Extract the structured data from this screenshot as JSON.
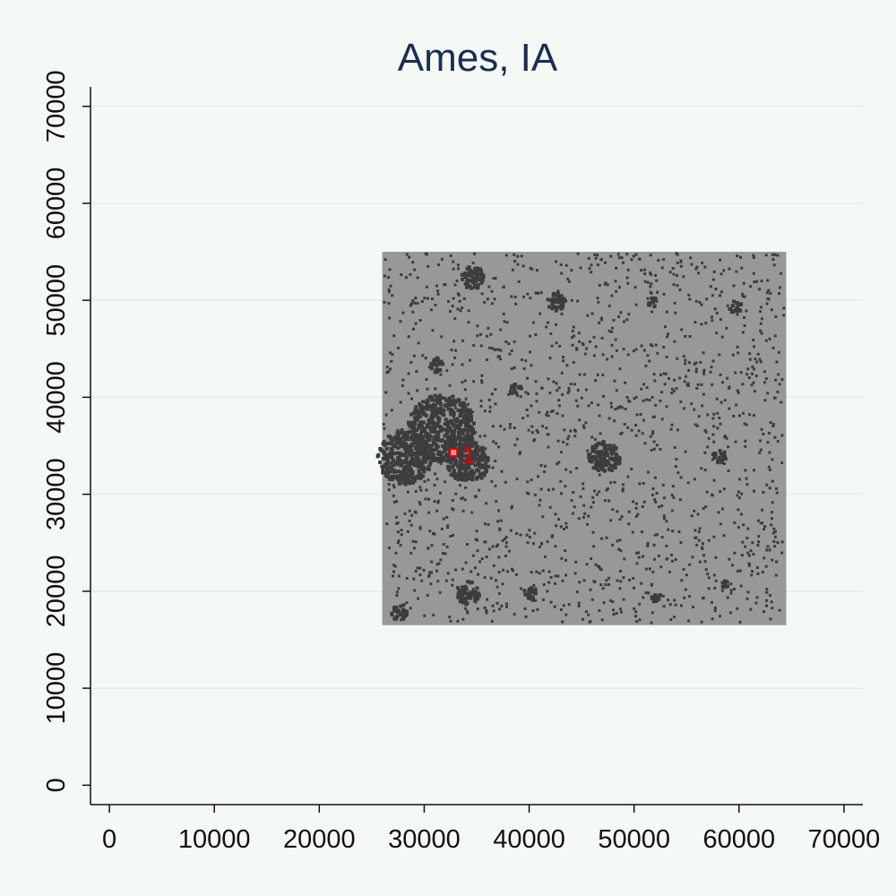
{
  "figure": {
    "title": "Ames, IA"
  },
  "chart_data": {
    "type": "map",
    "title": "Ames, IA",
    "xlabel": "",
    "ylabel": "",
    "xlim": [
      -1800,
      71800
    ],
    "ylim": [
      -2000,
      72000
    ],
    "x_ticks": [
      0,
      10000,
      20000,
      30000,
      40000,
      50000,
      60000,
      70000
    ],
    "y_ticks": [
      0,
      10000,
      20000,
      30000,
      40000,
      50000,
      60000,
      70000
    ],
    "x_tick_labels": [
      "0",
      "10000",
      "20000",
      "30000",
      "40000",
      "50000",
      "60000",
      "70000"
    ],
    "y_tick_labels": [
      "0",
      "10000",
      "20000",
      "30000",
      "40000",
      "50000",
      "60000",
      "70000"
    ],
    "grid": "horizontal",
    "raster": {
      "extent": {
        "x": [
          26000,
          64500
        ],
        "y": [
          16500,
          55000
        ]
      },
      "background_color": "#989898",
      "feature_color": "#3c3c3c",
      "clusters": [
        {
          "x": 31500,
          "y": 37000,
          "r": 3200
        },
        {
          "x": 28000,
          "y": 34000,
          "r": 2600
        },
        {
          "x": 34000,
          "y": 33500,
          "r": 2000
        },
        {
          "x": 47000,
          "y": 34000,
          "r": 1500
        },
        {
          "x": 34500,
          "y": 52500,
          "r": 1100
        },
        {
          "x": 42500,
          "y": 50000,
          "r": 900
        },
        {
          "x": 34000,
          "y": 20000,
          "r": 1100
        },
        {
          "x": 27500,
          "y": 18000,
          "r": 800
        },
        {
          "x": 58000,
          "y": 34000,
          "r": 700
        },
        {
          "x": 40000,
          "y": 20000,
          "r": 700
        },
        {
          "x": 51500,
          "y": 50000,
          "r": 500
        },
        {
          "x": 59500,
          "y": 49500,
          "r": 600
        },
        {
          "x": 31000,
          "y": 43500,
          "r": 700
        },
        {
          "x": 38500,
          "y": 41000,
          "r": 600
        },
        {
          "x": 52000,
          "y": 19500,
          "r": 500
        },
        {
          "x": 58500,
          "y": 21000,
          "r": 400
        }
      ]
    },
    "annotations": [
      {
        "label": "1",
        "x": 32800,
        "y": 34300,
        "color": "#dd0000"
      }
    ]
  }
}
